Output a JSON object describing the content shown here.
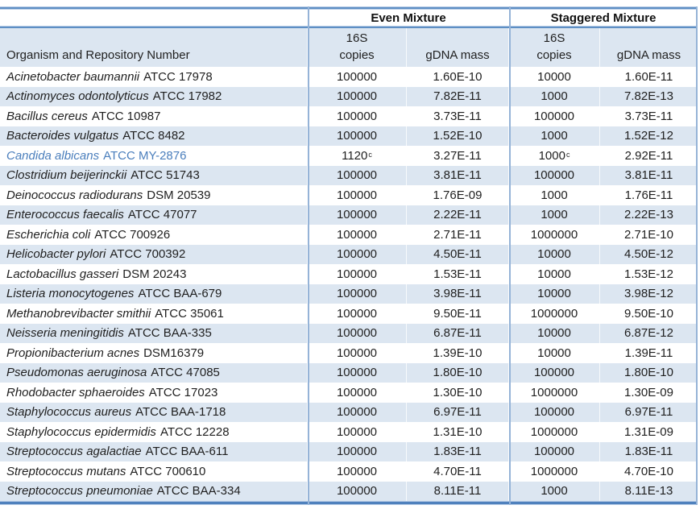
{
  "colors": {
    "row_band": "#DCE6F1",
    "vertical_border": "#95B3D7",
    "rule_dark": "#5E8FC4",
    "rule_light": "#B3C9E5",
    "rule_bottom": "#4F81BD",
    "text": "#1f1f1f",
    "highlight_text": "#4A7EBC"
  },
  "table": {
    "group_headers": [
      "Even Mixture",
      "Staggered Mixture"
    ],
    "sub_headers": {
      "organism": "Organism and Repository Number",
      "copies_top": "16S",
      "copies_bottom": "copies",
      "gdna": "gDNA mass"
    },
    "rows": [
      {
        "organism": "Acinetobacter baumannii",
        "repo": "ATCC 17978",
        "even_copies": "100000",
        "even_sup": "",
        "even_gdna": "1.60E-10",
        "stag_copies": "10000",
        "stag_sup": "",
        "stag_gdna": "1.60E-11",
        "highlight": false
      },
      {
        "organism": "Actinomyces odontolyticus",
        "repo": "ATCC 17982",
        "even_copies": "100000",
        "even_sup": "",
        "even_gdna": "7.82E-11",
        "stag_copies": "1000",
        "stag_sup": "",
        "stag_gdna": "7.82E-13",
        "highlight": false
      },
      {
        "organism": "Bacillus cereus",
        "repo": "ATCC 10987",
        "even_copies": "100000",
        "even_sup": "",
        "even_gdna": "3.73E-11",
        "stag_copies": "100000",
        "stag_sup": "",
        "stag_gdna": "3.73E-11",
        "highlight": false
      },
      {
        "organism": "Bacteroides vulgatus",
        "repo": "ATCC 8482",
        "even_copies": "100000",
        "even_sup": "",
        "even_gdna": "1.52E-10",
        "stag_copies": "1000",
        "stag_sup": "",
        "stag_gdna": "1.52E-12",
        "highlight": false
      },
      {
        "organism": "Candida albicans",
        "repo": "ATCC MY-2876",
        "even_copies": "1120",
        "even_sup": "c",
        "even_gdna": "3.27E-11",
        "stag_copies": "1000",
        "stag_sup": "c",
        "stag_gdna": "2.92E-11",
        "highlight": true
      },
      {
        "organism": "Clostridium beijerinckii",
        "repo": "ATCC 51743",
        "even_copies": "100000",
        "even_sup": "",
        "even_gdna": "3.81E-11",
        "stag_copies": "100000",
        "stag_sup": "",
        "stag_gdna": "3.81E-11",
        "highlight": false
      },
      {
        "organism": "Deinococcus radiodurans",
        "repo": "DSM 20539",
        "even_copies": "100000",
        "even_sup": "",
        "even_gdna": "1.76E-09",
        "stag_copies": "1000",
        "stag_sup": "",
        "stag_gdna": "1.76E-11",
        "highlight": false
      },
      {
        "organism": "Enterococcus faecalis",
        "repo": "ATCC 47077",
        "even_copies": "100000",
        "even_sup": "",
        "even_gdna": "2.22E-11",
        "stag_copies": "1000",
        "stag_sup": "",
        "stag_gdna": "2.22E-13",
        "highlight": false
      },
      {
        "organism": "Escherichia coli",
        "repo": "ATCC 700926",
        "even_copies": "100000",
        "even_sup": "",
        "even_gdna": "2.71E-11",
        "stag_copies": "1000000",
        "stag_sup": "",
        "stag_gdna": "2.71E-10",
        "highlight": false
      },
      {
        "organism": "Helicobacter pylori",
        "repo": "ATCC 700392",
        "even_copies": "100000",
        "even_sup": "",
        "even_gdna": "4.50E-11",
        "stag_copies": "10000",
        "stag_sup": "",
        "stag_gdna": "4.50E-12",
        "highlight": false
      },
      {
        "organism": "Lactobacillus gasseri",
        "repo": "DSM 20243",
        "even_copies": "100000",
        "even_sup": "",
        "even_gdna": "1.53E-11",
        "stag_copies": "10000",
        "stag_sup": "",
        "stag_gdna": "1.53E-12",
        "highlight": false
      },
      {
        "organism": "Listeria monocytogenes",
        "repo": "ATCC BAA-679",
        "even_copies": "100000",
        "even_sup": "",
        "even_gdna": "3.98E-11",
        "stag_copies": "10000",
        "stag_sup": "",
        "stag_gdna": "3.98E-12",
        "highlight": false
      },
      {
        "organism": "Methanobrevibacter smithii",
        "repo": "ATCC 35061",
        "even_copies": "100000",
        "even_sup": "",
        "even_gdna": "9.50E-11",
        "stag_copies": "1000000",
        "stag_sup": "",
        "stag_gdna": "9.50E-10",
        "highlight": false
      },
      {
        "organism": "Neisseria meningitidis",
        "repo": "ATCC BAA-335",
        "even_copies": "100000",
        "even_sup": "",
        "even_gdna": "6.87E-11",
        "stag_copies": "10000",
        "stag_sup": "",
        "stag_gdna": "6.87E-12",
        "highlight": false
      },
      {
        "organism": "Propionibacterium acnes",
        "repo": "DSM16379",
        "even_copies": "100000",
        "even_sup": "",
        "even_gdna": "1.39E-10",
        "stag_copies": "10000",
        "stag_sup": "",
        "stag_gdna": "1.39E-11",
        "highlight": false
      },
      {
        "organism": "Pseudomonas aeruginosa",
        "repo": "ATCC 47085",
        "even_copies": "100000",
        "even_sup": "",
        "even_gdna": "1.80E-10",
        "stag_copies": "100000",
        "stag_sup": "",
        "stag_gdna": "1.80E-10",
        "highlight": false
      },
      {
        "organism": "Rhodobacter sphaeroides",
        "repo": "ATCC 17023",
        "even_copies": "100000",
        "even_sup": "",
        "even_gdna": "1.30E-10",
        "stag_copies": "1000000",
        "stag_sup": "",
        "stag_gdna": "1.30E-09",
        "highlight": false
      },
      {
        "organism": "Staphylococcus aureus",
        "repo": "ATCC BAA-1718",
        "even_copies": "100000",
        "even_sup": "",
        "even_gdna": "6.97E-11",
        "stag_copies": "100000",
        "stag_sup": "",
        "stag_gdna": "6.97E-11",
        "highlight": false
      },
      {
        "organism": "Staphylococcus epidermidis",
        "repo": "ATCC 12228",
        "even_copies": "100000",
        "even_sup": "",
        "even_gdna": "1.31E-10",
        "stag_copies": "1000000",
        "stag_sup": "",
        "stag_gdna": "1.31E-09",
        "highlight": false
      },
      {
        "organism": "Streptococcus agalactiae",
        "repo": "ATCC BAA-611",
        "even_copies": "100000",
        "even_sup": "",
        "even_gdna": "1.83E-11",
        "stag_copies": "100000",
        "stag_sup": "",
        "stag_gdna": "1.83E-11",
        "highlight": false
      },
      {
        "organism": "Streptococcus mutans",
        "repo": "ATCC 700610",
        "even_copies": "100000",
        "even_sup": "",
        "even_gdna": "4.70E-11",
        "stag_copies": "1000000",
        "stag_sup": "",
        "stag_gdna": "4.70E-10",
        "highlight": false
      },
      {
        "organism": "Streptococcus pneumoniae",
        "repo": "ATCC BAA-334",
        "even_copies": "100000",
        "even_sup": "",
        "even_gdna": "8.11E-11",
        "stag_copies": "1000",
        "stag_sup": "",
        "stag_gdna": "8.11E-13",
        "highlight": false
      }
    ]
  }
}
